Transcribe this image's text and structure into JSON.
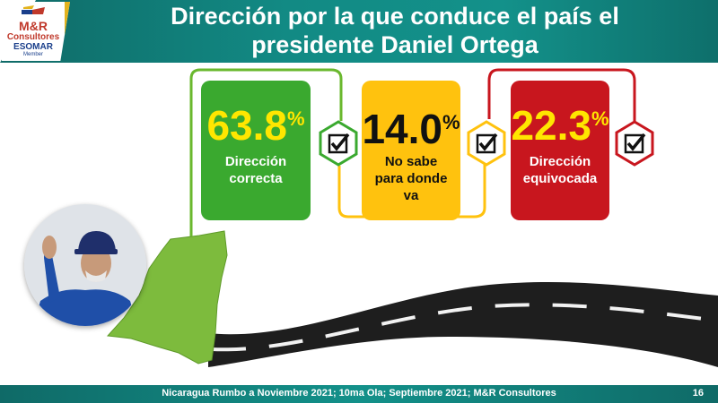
{
  "logo": {
    "line1": "M&R",
    "line2": "Consultores",
    "line3": "ESOMAR",
    "line4": "Member"
  },
  "header": {
    "title_line1": "Dirección por la que conduce el país el",
    "title_line2": "presidente Daniel Ortega"
  },
  "chart_data": {
    "type": "bar",
    "categories": [
      "Dirección correcta",
      "No sabe para donde va",
      "Dirección equivocada"
    ],
    "values": [
      63.8,
      14.0,
      22.3
    ],
    "unit": "%",
    "colors": [
      "#3aa92f",
      "#ffc20e",
      "#c8161e"
    ]
  },
  "cards": [
    {
      "value": "63.8",
      "unit": "%",
      "label_lines": [
        "Dirección",
        "correcta"
      ]
    },
    {
      "value": "14.0",
      "unit": "%",
      "label_lines": [
        "No sabe",
        "para donde",
        "va"
      ]
    },
    {
      "value": "22.3",
      "unit": "%",
      "label_lines": [
        "Dirección",
        "equivocada"
      ]
    }
  ],
  "footer": {
    "source": "Nicaragua Rumbo a Noviembre 2021; 10ma Ola; Septiembre 2021; M&R Consultores",
    "page": "16"
  },
  "icons": [
    "check-hexagon-icon",
    "nicaragua-map-icon",
    "road-icon",
    "portrait-image",
    "logo-icon"
  ]
}
